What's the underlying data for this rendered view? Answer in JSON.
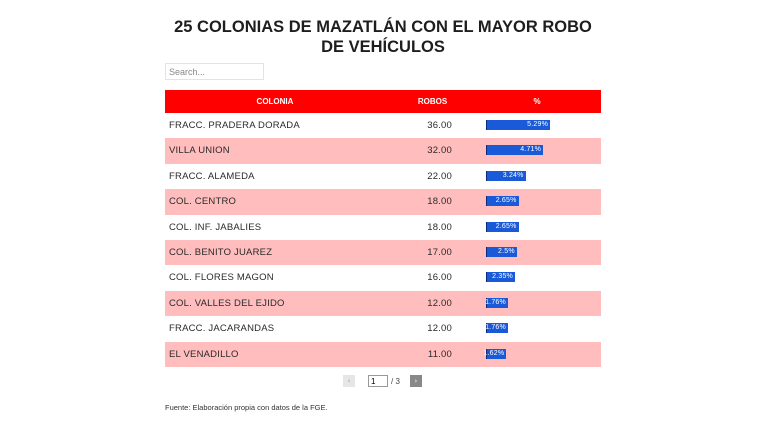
{
  "title": "25 COLONIAS DE MAZATLÁN CON EL MAYOR ROBO DE VEHÍCULOS",
  "search": {
    "placeholder": "Search...",
    "value": ""
  },
  "table": {
    "headers": {
      "colonia": "COLONIA",
      "robos": "ROBOS",
      "pct": "%"
    },
    "bar_color": "#1a5ad8",
    "rows": [
      {
        "colonia": "FRACC. PRADERA DORADA",
        "robos": "36.00",
        "pct_label": "5.29%",
        "pct": 5.29
      },
      {
        "colonia": "VILLA UNION",
        "robos": "32.00",
        "pct_label": "4.71%",
        "pct": 4.71
      },
      {
        "colonia": "FRACC. ALAMEDA",
        "robos": "22.00",
        "pct_label": "3.24%",
        "pct": 3.24
      },
      {
        "colonia": "COL. CENTRO",
        "robos": "18.00",
        "pct_label": "2.65%",
        "pct": 2.65
      },
      {
        "colonia": "COL. INF. JABALIES",
        "robos": "18.00",
        "pct_label": "2.65%",
        "pct": 2.65
      },
      {
        "colonia": "COL. BENITO JUAREZ",
        "robos": "17.00",
        "pct_label": "2.5%",
        "pct": 2.5
      },
      {
        "colonia": "COL. FLORES MAGON",
        "robos": "16.00",
        "pct_label": "2.35%",
        "pct": 2.35
      },
      {
        "colonia": "COL. VALLES DEL EJIDO",
        "robos": "12.00",
        "pct_label": "1.76%",
        "pct": 1.76
      },
      {
        "colonia": "FRACC. JACARANDAS",
        "robos": "12.00",
        "pct_label": "1.76%",
        "pct": 1.76
      },
      {
        "colonia": "EL VENADILLO",
        "robos": "11.00",
        "pct_label": "1.62%",
        "pct": 1.62
      }
    ]
  },
  "pagination": {
    "prev_icon": "‹",
    "next_icon": "›",
    "current": "1",
    "total_label": "/ 3"
  },
  "source": "Fuente: Elaboración propia con datos de la FGE."
}
